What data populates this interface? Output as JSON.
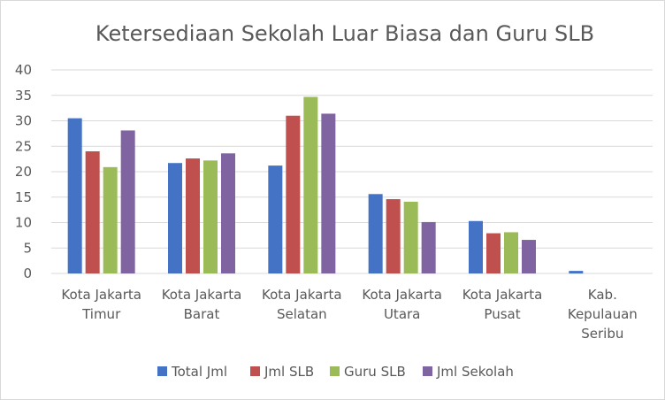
{
  "chart_data": {
    "type": "bar",
    "title": "Ketersediaan Sekolah Luar Biasa dan Guru SLB",
    "categories": [
      [
        "Kota Jakarta",
        "Timur"
      ],
      [
        "Kota Jakarta",
        "Barat"
      ],
      [
        "Kota Jakarta",
        "Selatan"
      ],
      [
        "Kota Jakarta",
        "Utara"
      ],
      [
        "Kota Jakarta",
        "Pusat"
      ],
      [
        "Kab.",
        "Kepulauan",
        "Seribu"
      ]
    ],
    "series": [
      {
        "name": "Total Jml",
        "color": "#4472c4",
        "values": [
          30.5,
          21.7,
          21.2,
          15.6,
          10.3,
          0.5
        ]
      },
      {
        "name": "Jml SLB",
        "color": "#c0504d",
        "values": [
          24.0,
          22.6,
          31.0,
          14.6,
          7.9,
          0
        ]
      },
      {
        "name": "Guru SLB",
        "color": "#9bbb59",
        "values": [
          20.9,
          22.2,
          34.7,
          14.1,
          8.1,
          0
        ]
      },
      {
        "name": "Jml Sekolah",
        "color": "#8064a2",
        "values": [
          28.1,
          23.6,
          31.4,
          10.1,
          6.6,
          0
        ]
      }
    ],
    "yticks": [
      "0",
      "5",
      "10",
      "15",
      "20",
      "25",
      "30",
      "35",
      "40"
    ],
    "ylim": [
      0,
      40
    ],
    "grid": true,
    "legend": "bottom"
  }
}
